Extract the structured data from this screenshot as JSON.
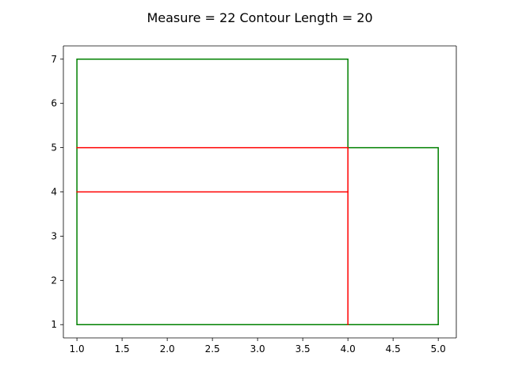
{
  "chart_data": {
    "type": "line",
    "title": "Measure = 22 Contour Length = 20",
    "xlabel": "",
    "ylabel": "",
    "xlim": [
      0.85,
      5.2
    ],
    "ylim": [
      0.7,
      7.3
    ],
    "grid": false,
    "x_ticks": [
      1.0,
      1.5,
      2.0,
      2.5,
      3.0,
      3.5,
      4.0,
      4.5,
      5.0
    ],
    "x_tick_labels": [
      "1.0",
      "1.5",
      "2.0",
      "2.5",
      "3.0",
      "3.5",
      "4.0",
      "4.5",
      "5.0"
    ],
    "y_ticks": [
      1,
      2,
      3,
      4,
      5,
      6,
      7
    ],
    "y_tick_labels": [
      "1",
      "2",
      "3",
      "4",
      "5",
      "6",
      "7"
    ],
    "colors": {
      "contour": "#008000",
      "internal": "#ff0000"
    },
    "series": [
      {
        "color": "#008000",
        "x": [
          1,
          4,
          4,
          5,
          5,
          1,
          1
        ],
        "y": [
          7,
          7,
          5,
          5,
          1,
          1,
          7
        ]
      },
      {
        "color": "#ff0000",
        "x": [
          1,
          4
        ],
        "y": [
          5,
          5
        ]
      },
      {
        "color": "#ff0000",
        "x": [
          1,
          4
        ],
        "y": [
          4,
          4
        ]
      },
      {
        "color": "#ff0000",
        "x": [
          4,
          4
        ],
        "y": [
          1,
          5
        ]
      }
    ]
  }
}
